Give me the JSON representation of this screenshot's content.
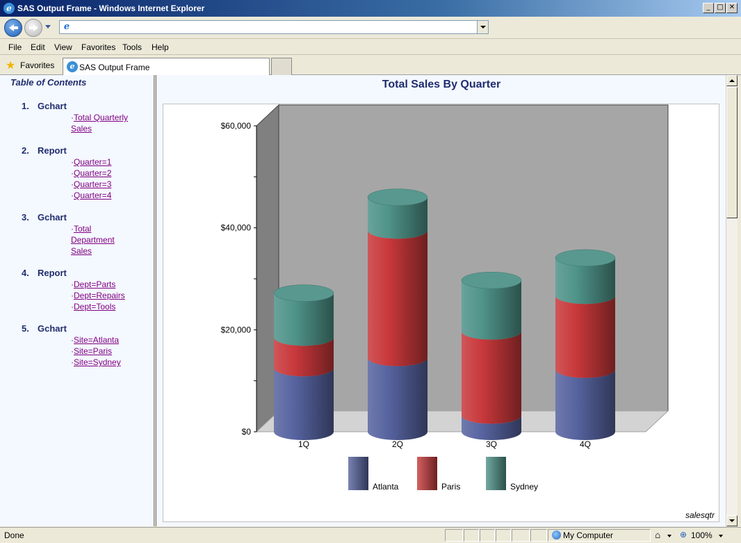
{
  "window": {
    "title": "SAS Output Frame - Windows Internet Explorer",
    "app_icon": "ie-logo-icon"
  },
  "window_controls": {
    "minimize": "_",
    "maximize": "□",
    "close": "✕"
  },
  "address_bar": {
    "value": ""
  },
  "menu": [
    "File",
    "Edit",
    "View",
    "Favorites",
    "Tools",
    "Help"
  ],
  "favorites_label": "Favorites",
  "tab": {
    "label": "SAS Output Frame"
  },
  "toc": {
    "title": "Table of Contents",
    "sections": [
      {
        "num": "1.",
        "name": "Gchart",
        "links": [
          "Total Quarterly Sales"
        ]
      },
      {
        "num": "2.",
        "name": "Report",
        "links": [
          "Quarter=1",
          "Quarter=2",
          "Quarter=3",
          "Quarter=4"
        ]
      },
      {
        "num": "3.",
        "name": "Gchart",
        "links": [
          "Total Department Sales"
        ]
      },
      {
        "num": "4.",
        "name": "Report",
        "links": [
          "Dept=Parts",
          "Dept=Repairs",
          "Dept=Tools"
        ]
      },
      {
        "num": "5.",
        "name": "Gchart",
        "links": [
          "Site=Atlanta",
          "Site=Paris",
          "Site=Sydney"
        ]
      }
    ]
  },
  "chart_data": {
    "type": "bar",
    "stacked": true,
    "style": "3d-cylinder",
    "title": "Total Sales By Quarter",
    "categories": [
      "1Q",
      "2Q",
      "3Q",
      "4Q"
    ],
    "series": [
      {
        "name": "Atlanta",
        "values": [
          12500,
          14500,
          3200,
          12200
        ],
        "color": "#56639f"
      },
      {
        "name": "Paris",
        "values": [
          6000,
          25000,
          16500,
          14500
        ],
        "color": "#c8383b"
      },
      {
        "name": "Sydney",
        "values": [
          8700,
          6500,
          10000,
          7400
        ],
        "color": "#4f9389"
      }
    ],
    "yticks": [
      "$0",
      "$20,000",
      "$40,000",
      "$60,000"
    ],
    "ytick_values": [
      0,
      20000,
      40000,
      60000
    ],
    "ylim": [
      0,
      60000
    ],
    "legend_position": "bottom",
    "footnote": "salesqtr"
  },
  "status": {
    "text": "Done",
    "zone": "My Computer",
    "zoom": "100%"
  }
}
